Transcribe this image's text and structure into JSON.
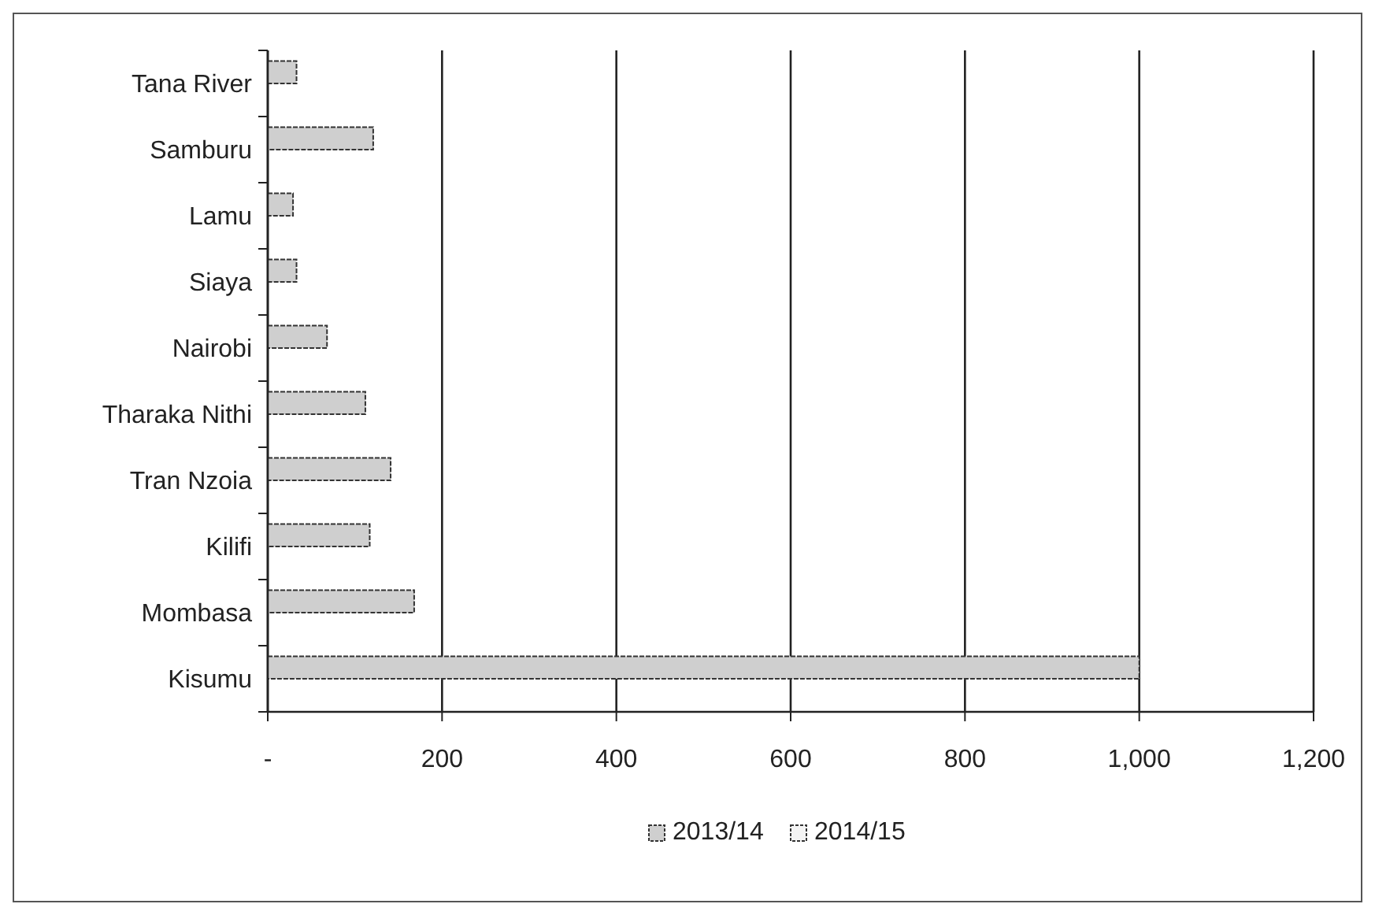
{
  "chart_data": {
    "type": "bar",
    "orientation": "horizontal",
    "categories": [
      "Tana River",
      "Samburu",
      "Lamu",
      "Siaya",
      "Nairobi",
      "Tharaka Nithi",
      "Tran Nzoia",
      "Kilifi",
      "Mombasa",
      "Kisumu"
    ],
    "series": [
      {
        "name": "2013/14",
        "color": "#cfcfcf",
        "values": [
          33,
          121,
          29,
          33,
          68,
          112,
          141,
          117,
          168,
          1000
        ]
      },
      {
        "name": "2014/15",
        "color": "#f4f4f4",
        "values": [
          null,
          null,
          null,
          null,
          null,
          null,
          null,
          null,
          null,
          null
        ]
      }
    ],
    "xlim": [
      0,
      1200
    ],
    "xticks": [
      {
        "value": 0,
        "label": "-"
      },
      {
        "value": 200,
        "label": "200"
      },
      {
        "value": 400,
        "label": "400"
      },
      {
        "value": 600,
        "label": "600"
      },
      {
        "value": 800,
        "label": "800"
      },
      {
        "value": 1000,
        "label": "1,000"
      },
      {
        "value": 1200,
        "label": "1,200"
      }
    ],
    "grid": "x",
    "legend": "bottom"
  }
}
